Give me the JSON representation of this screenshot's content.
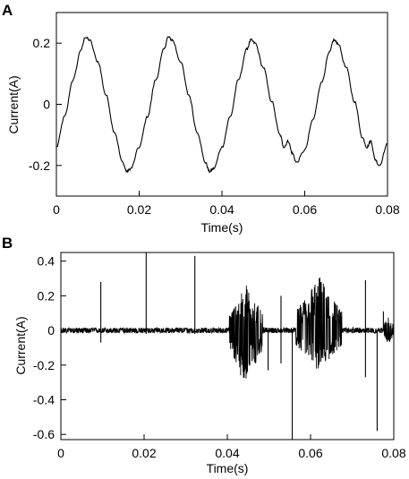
{
  "panels": {
    "a": {
      "label": "A"
    },
    "b": {
      "label": "B"
    }
  },
  "chart_data": [
    {
      "type": "line",
      "panel": "A",
      "xlabel": "Time(s)",
      "ylabel": "Current(A)",
      "xlim": [
        0,
        0.08
      ],
      "ylim": [
        -0.3,
        0.3
      ],
      "x_ticks": [
        0,
        0.02,
        0.04,
        0.06,
        0.08
      ],
      "x_tick_labels": [
        "0",
        "0.02",
        "0.04",
        "0.06",
        "0.08"
      ],
      "y_ticks": [
        -0.2,
        0,
        0.2
      ],
      "y_tick_labels": [
        "-0.2",
        "0",
        "0.2"
      ],
      "grid": false,
      "series": [
        {
          "description": "approximately sinusoidal current, amplitude about 0.21 A, frequency 50 Hz, starting near -0.14 A at t=0; small distortion bumps near the negative peaks at about 0.056 s and 0.075 s",
          "x": [
            0,
            0.002,
            0.004,
            0.006,
            0.007,
            0.008,
            0.01,
            0.012,
            0.014,
            0.016,
            0.017,
            0.018,
            0.02,
            0.022,
            0.024,
            0.026,
            0.027,
            0.028,
            0.03,
            0.032,
            0.034,
            0.036,
            0.037,
            0.038,
            0.04,
            0.042,
            0.044,
            0.046,
            0.047,
            0.048,
            0.05,
            0.052,
            0.054,
            0.055,
            0.056,
            0.057,
            0.058,
            0.06,
            0.062,
            0.064,
            0.066,
            0.067,
            0.068,
            0.07,
            0.072,
            0.074,
            0.075,
            0.076,
            0.077,
            0.078,
            0.08
          ],
          "y": [
            -0.14,
            -0.04,
            0.08,
            0.18,
            0.22,
            0.21,
            0.14,
            0.03,
            -0.09,
            -0.19,
            -0.22,
            -0.21,
            -0.14,
            -0.04,
            0.08,
            0.18,
            0.22,
            0.21,
            0.14,
            0.03,
            -0.09,
            -0.19,
            -0.22,
            -0.21,
            -0.14,
            -0.04,
            0.08,
            0.18,
            0.21,
            0.2,
            0.12,
            0.01,
            -0.1,
            -0.14,
            -0.12,
            -0.16,
            -0.19,
            -0.15,
            -0.05,
            0.07,
            0.17,
            0.21,
            0.2,
            0.12,
            0.01,
            -0.11,
            -0.14,
            -0.12,
            -0.18,
            -0.2,
            -0.13
          ]
        }
      ]
    },
    {
      "type": "line",
      "panel": "B",
      "xlabel": "Time(s)",
      "ylabel": "Current(A)",
      "xlim": [
        0,
        0.08
      ],
      "ylim": [
        -0.63,
        0.45
      ],
      "x_ticks": [
        0,
        0.02,
        0.04,
        0.06,
        0.08
      ],
      "x_tick_labels": [
        "0",
        "0.02",
        "0.04",
        "0.06",
        "0.08"
      ],
      "y_ticks": [
        -0.6,
        -0.4,
        -0.2,
        0,
        0.2,
        0.4
      ],
      "y_tick_labels": [
        "-0.6",
        "-0.4",
        "-0.2",
        "0",
        "0.2",
        "0.4"
      ],
      "grid": false,
      "baseline": {
        "value": 0,
        "noise_amplitude": 0.015
      },
      "spikes": [
        {
          "x": 0.0096,
          "y": 0.28
        },
        {
          "x": 0.0096,
          "y": -0.07
        },
        {
          "x": 0.0205,
          "y": 0.45
        },
        {
          "x": 0.0205,
          "y": -0.02
        },
        {
          "x": 0.0322,
          "y": 0.43
        },
        {
          "x": 0.0322,
          "y": -0.02
        },
        {
          "x": 0.0498,
          "y": -0.23
        },
        {
          "x": 0.0529,
          "y": 0.2
        },
        {
          "x": 0.0529,
          "y": -0.19
        },
        {
          "x": 0.0556,
          "y": -0.63
        },
        {
          "x": 0.0616,
          "y": -0.1
        },
        {
          "x": 0.0702,
          "y": 0.02
        },
        {
          "x": 0.0732,
          "y": 0.29
        },
        {
          "x": 0.0732,
          "y": -0.27
        },
        {
          "x": 0.076,
          "y": -0.58
        },
        {
          "x": 0.0775,
          "y": 0.11
        }
      ],
      "bursts": [
        {
          "x_start": 0.0405,
          "x_end": 0.0485,
          "max": 0.27,
          "min": -0.33
        },
        {
          "x_start": 0.0565,
          "x_end": 0.0675,
          "max": 0.32,
          "min": -0.24
        },
        {
          "x_start": 0.0775,
          "x_end": 0.08,
          "max": 0.09,
          "min": -0.08
        }
      ]
    }
  ]
}
